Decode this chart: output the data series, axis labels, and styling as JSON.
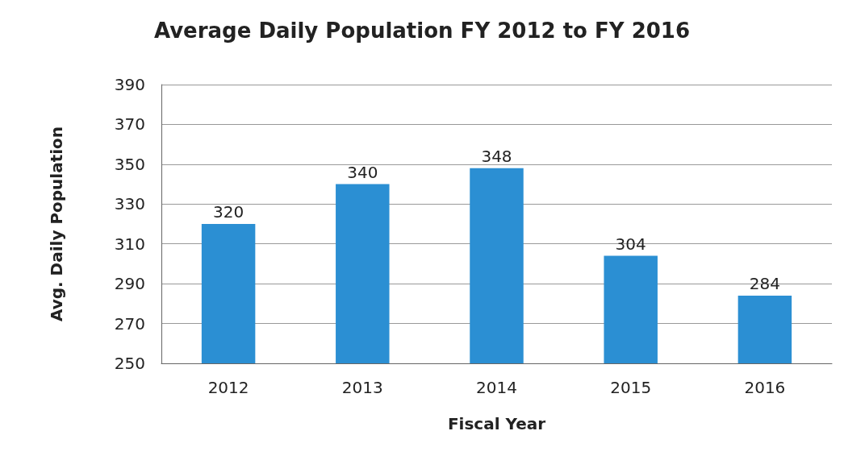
{
  "chart_data": {
    "type": "bar",
    "title": "Average Daily Population FY 2012 to FY 2016",
    "xlabel": "Fiscal Year",
    "ylabel": "Avg. Daily Population",
    "categories": [
      "2012",
      "2013",
      "2014",
      "2015",
      "2016"
    ],
    "values": [
      320,
      340,
      348,
      304,
      284
    ],
    "color": "#2b8fd3",
    "ylim": [
      250,
      390
    ],
    "yticks": [
      250,
      270,
      290,
      310,
      330,
      350,
      370,
      390
    ],
    "grid": "y",
    "data_labels": true
  }
}
